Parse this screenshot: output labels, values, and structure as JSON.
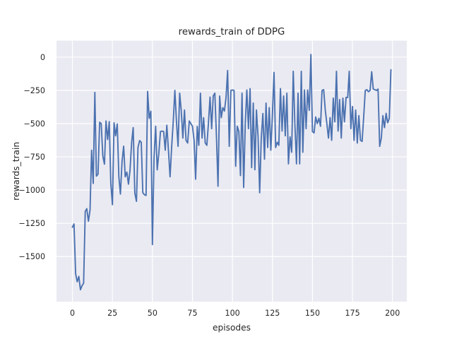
{
  "figure": {
    "title": "rewards_train of DDPG",
    "xlabel": "episodes",
    "ylabel": "rewards_train"
  },
  "chart_data": {
    "type": "line",
    "title": "rewards_train of DDPG",
    "xlabel": "episodes",
    "ylabel": "rewards_train",
    "grid": true,
    "legend": false,
    "xlim": [
      -9.95,
      208.95
    ],
    "ylim": [
      -1840,
      124
    ],
    "xticks": [
      0,
      25,
      50,
      75,
      100,
      125,
      150,
      175,
      200
    ],
    "yticks": [
      0,
      -250,
      -500,
      -750,
      -1000,
      -1250,
      -1500
    ],
    "xtick_labels": [
      "0",
      "25",
      "50",
      "75",
      "100",
      "125",
      "150",
      "175",
      "200"
    ],
    "ytick_labels": [
      "0",
      "−250",
      "−500",
      "−750",
      "−1000",
      "−1250",
      "−1500"
    ],
    "colors": {
      "figure_bg": "#ffffff",
      "axes_bg": "#eaeaf2",
      "grid": "#ffffff",
      "line": "#4c72b0",
      "text": "#262626"
    },
    "x_start": 0,
    "x_step": 1,
    "series": [
      {
        "name": "rewards_train",
        "color": "#4c72b0",
        "values": [
          -1280,
          -1255,
          -1630,
          -1690,
          -1650,
          -1750,
          -1720,
          -1700,
          -1160,
          -1140,
          -1235,
          -1150,
          -700,
          -950,
          -265,
          -895,
          -880,
          -490,
          -500,
          -745,
          -805,
          -480,
          -620,
          -485,
          -950,
          -1110,
          -494,
          -592,
          -503,
          -900,
          -1030,
          -785,
          -670,
          -900,
          -865,
          -955,
          -850,
          -640,
          -530,
          -1023,
          -1085,
          -680,
          -628,
          -640,
          -1020,
          -1035,
          -1040,
          -258,
          -460,
          -407,
          -1410,
          -760,
          -520,
          -848,
          -724,
          -560,
          -556,
          -560,
          -700,
          -512,
          -700,
          -900,
          -680,
          -485,
          -250,
          -477,
          -671,
          -271,
          -400,
          -609,
          -398,
          -626,
          -646,
          -480,
          -500,
          -520,
          -626,
          -918,
          -521,
          -663,
          -271,
          -609,
          -455,
          -646,
          -663,
          -500,
          -300,
          -538,
          -292,
          -271,
          -600,
          -971,
          -292,
          -455,
          -380,
          -405,
          -300,
          -100,
          -671,
          -250,
          -247,
          -250,
          -821,
          -520,
          -560,
          -891,
          -271,
          -980,
          -500,
          -247,
          -538,
          -237,
          -831,
          -345,
          -847,
          -398,
          -600,
          -1020,
          -610,
          -424,
          -768,
          -345,
          -680,
          -380,
          -700,
          -420,
          -115,
          -680,
          -640,
          -663,
          -237,
          -556,
          -292,
          -592,
          -271,
          -803,
          -600,
          -715,
          -106,
          -500,
          -803,
          -271,
          -803,
          -106,
          -715,
          -247,
          -538,
          -247,
          -400,
          20,
          -560,
          -570,
          -450,
          -500,
          -460,
          -520,
          -250,
          -245,
          -400,
          -500,
          -609,
          -455,
          -626,
          -308,
          -487,
          -106,
          -556,
          -319,
          -609,
          -308,
          -487,
          -303,
          -303,
          -106,
          -538,
          -371,
          -626,
          -398,
          -646,
          -440,
          -626,
          -634,
          -455,
          -250,
          -245,
          -260,
          -250,
          -110,
          -240,
          -245,
          -250,
          -240,
          -671,
          -609,
          -440,
          -530,
          -423,
          -494,
          -460,
          -95
        ]
      }
    ]
  }
}
